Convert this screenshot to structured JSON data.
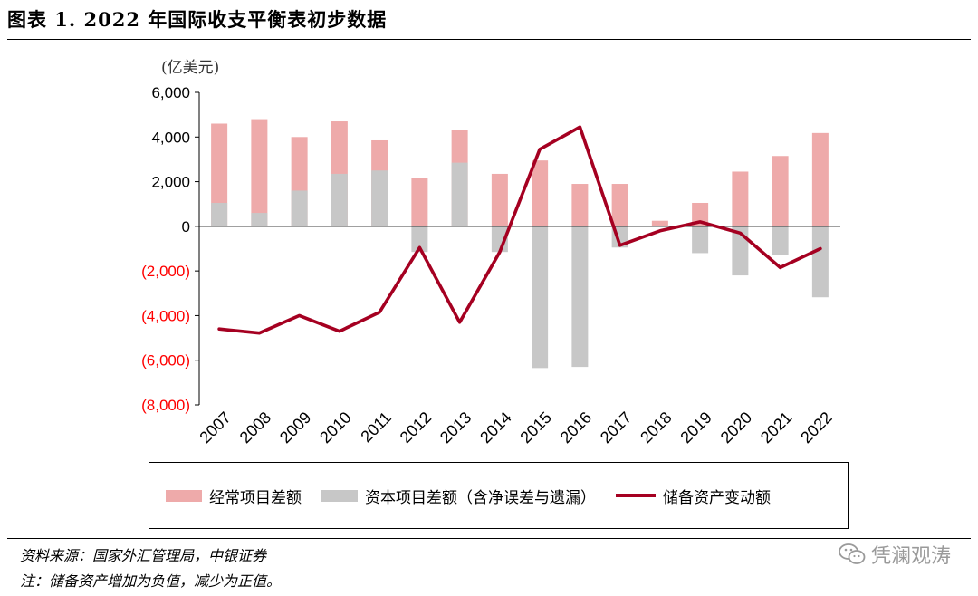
{
  "header": {
    "title": "图表 1. 2022 年国际收支平衡表初步数据"
  },
  "footer": {
    "source": "资料来源：国家外汇管理局，中银证券",
    "note": "注：储备资产增加为负值，减少为正值。"
  },
  "watermark": {
    "text": "凭澜观涛"
  },
  "colors": {
    "current": "#eeaaaa",
    "capital": "#c7c7c7",
    "reserve": "#a50021",
    "negative_tick": "#ff0000"
  },
  "chart_data": {
    "type": "bar",
    "unit_label": "(亿美元)",
    "categories": [
      "2007",
      "2008",
      "2009",
      "2010",
      "2011",
      "2012",
      "2013",
      "2014",
      "2015",
      "2016",
      "2017",
      "2018",
      "2019",
      "2020",
      "2021",
      "2022"
    ],
    "series": [
      {
        "name": "经常项目差额",
        "type": "bar",
        "values": [
          4600,
          4800,
          4000,
          4700,
          3850,
          2150,
          4300,
          2350,
          2950,
          1900,
          1900,
          250,
          1050,
          2450,
          3150,
          4180
        ]
      },
      {
        "name": "资本项目差额（含净误差与遗漏）",
        "type": "bar",
        "values": [
          1050,
          600,
          1600,
          2350,
          2500,
          -1150,
          2850,
          -1150,
          -6350,
          -6300,
          -950,
          0,
          -1200,
          -2200,
          -1300,
          -3180
        ]
      },
      {
        "name": "储备资产变动额",
        "type": "line",
        "values": [
          -4600,
          -4780,
          -4000,
          -4700,
          -3850,
          -950,
          -4300,
          -1150,
          3450,
          4450,
          -850,
          -200,
          200,
          -300,
          -1850,
          -1000
        ]
      }
    ],
    "ylim": [
      -8000,
      6000
    ],
    "yticks": [
      6000,
      4000,
      2000,
      0,
      -2000,
      -4000,
      -6000,
      -8000
    ],
    "ytick_labels": [
      "6,000",
      "4,000",
      "2,000",
      "0",
      "(2,000)",
      "(4,000)",
      "(6,000)",
      "(8,000)"
    ],
    "legend": [
      "经常项目差额",
      "资本项目差额（含净误差与遗漏）",
      "储备资产变动额"
    ]
  }
}
